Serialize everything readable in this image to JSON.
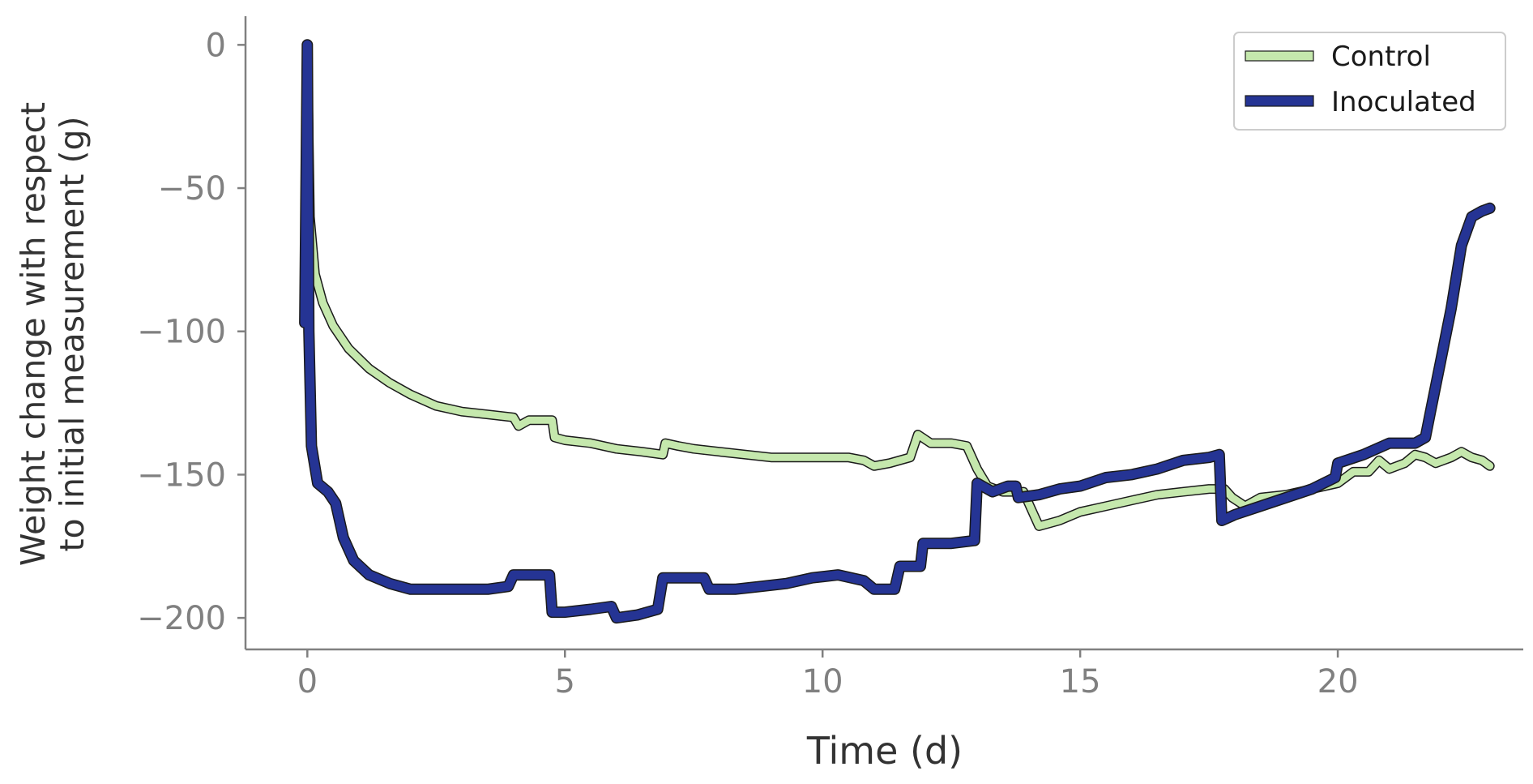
{
  "chart_data": {
    "type": "line",
    "xlabel": "Time (d)",
    "ylabel_line1": "Weight change with respect",
    "ylabel_line2": "to initial measurement (g)",
    "xlim": [
      -1.2,
      23.6
    ],
    "ylim": [
      -211,
      10
    ],
    "x_ticks": [
      0,
      5,
      10,
      15,
      20
    ],
    "y_ticks": [
      0,
      -50,
      -100,
      -150,
      -200
    ],
    "x_tick_labels": [
      "0",
      "5",
      "10",
      "15",
      "20"
    ],
    "y_tick_labels": [
      "0",
      "−50",
      "−100",
      "−150",
      "−200"
    ],
    "grid": false,
    "legend_position": "top-right",
    "series": [
      {
        "name": "Control",
        "color": "#c5e8ad",
        "edge": "#1a1a1a",
        "linewidth": 9,
        "points": [
          [
            0,
            0
          ],
          [
            0.05,
            -60
          ],
          [
            0.15,
            -80
          ],
          [
            0.3,
            -90
          ],
          [
            0.5,
            -98
          ],
          [
            0.8,
            -106
          ],
          [
            1.2,
            -113
          ],
          [
            1.6,
            -118
          ],
          [
            2.0,
            -122
          ],
          [
            2.5,
            -126
          ],
          [
            3.0,
            -128
          ],
          [
            3.5,
            -129
          ],
          [
            4.0,
            -130
          ],
          [
            4.1,
            -133
          ],
          [
            4.3,
            -131
          ],
          [
            4.75,
            -131
          ],
          [
            4.8,
            -137
          ],
          [
            5.0,
            -138
          ],
          [
            5.5,
            -139
          ],
          [
            6.0,
            -141
          ],
          [
            6.5,
            -142
          ],
          [
            6.9,
            -143
          ],
          [
            6.95,
            -139
          ],
          [
            7.2,
            -140
          ],
          [
            7.5,
            -141
          ],
          [
            8.0,
            -142
          ],
          [
            8.5,
            -143
          ],
          [
            9.0,
            -144
          ],
          [
            9.5,
            -144
          ],
          [
            10.0,
            -144
          ],
          [
            10.5,
            -144
          ],
          [
            10.8,
            -145
          ],
          [
            11.0,
            -147
          ],
          [
            11.3,
            -146
          ],
          [
            11.7,
            -144
          ],
          [
            11.85,
            -136
          ],
          [
            12.1,
            -139
          ],
          [
            12.5,
            -139
          ],
          [
            12.8,
            -140
          ],
          [
            13.0,
            -148
          ],
          [
            13.2,
            -154
          ],
          [
            13.5,
            -156
          ],
          [
            13.9,
            -156
          ],
          [
            14.05,
            -162
          ],
          [
            14.2,
            -168
          ],
          [
            14.6,
            -166
          ],
          [
            15.0,
            -163
          ],
          [
            15.5,
            -161
          ],
          [
            16.0,
            -159
          ],
          [
            16.5,
            -157
          ],
          [
            17.0,
            -156
          ],
          [
            17.5,
            -155
          ],
          [
            17.8,
            -155
          ],
          [
            17.95,
            -158
          ],
          [
            18.2,
            -161
          ],
          [
            18.5,
            -158
          ],
          [
            19.0,
            -157
          ],
          [
            19.5,
            -155
          ],
          [
            20.0,
            -153
          ],
          [
            20.3,
            -149
          ],
          [
            20.6,
            -149
          ],
          [
            20.8,
            -145
          ],
          [
            21.0,
            -148
          ],
          [
            21.3,
            -146
          ],
          [
            21.5,
            -143
          ],
          [
            21.7,
            -144
          ],
          [
            21.9,
            -146
          ],
          [
            22.2,
            -144
          ],
          [
            22.4,
            -142
          ],
          [
            22.6,
            -144
          ],
          [
            22.8,
            -145
          ],
          [
            22.95,
            -147
          ]
        ]
      },
      {
        "name": "Inoculated",
        "color": "#253494",
        "edge": "#1a1a1a",
        "linewidth": 11,
        "points": [
          [
            -0.05,
            -97
          ],
          [
            0,
            0
          ],
          [
            0.03,
            -100
          ],
          [
            0.08,
            -140
          ],
          [
            0.2,
            -153
          ],
          [
            0.4,
            -156
          ],
          [
            0.55,
            -160
          ],
          [
            0.7,
            -172
          ],
          [
            0.9,
            -180
          ],
          [
            1.2,
            -185
          ],
          [
            1.6,
            -188
          ],
          [
            2.0,
            -190
          ],
          [
            2.5,
            -190
          ],
          [
            3.0,
            -190
          ],
          [
            3.5,
            -190
          ],
          [
            3.9,
            -189
          ],
          [
            4.0,
            -185
          ],
          [
            4.3,
            -185
          ],
          [
            4.7,
            -185
          ],
          [
            4.75,
            -198
          ],
          [
            5.0,
            -198
          ],
          [
            5.5,
            -197
          ],
          [
            5.9,
            -196
          ],
          [
            6.0,
            -200
          ],
          [
            6.4,
            -199
          ],
          [
            6.8,
            -197
          ],
          [
            6.9,
            -186
          ],
          [
            7.3,
            -186
          ],
          [
            7.7,
            -186
          ],
          [
            7.8,
            -190
          ],
          [
            8.3,
            -190
          ],
          [
            8.8,
            -189
          ],
          [
            9.3,
            -188
          ],
          [
            9.8,
            -186
          ],
          [
            10.3,
            -185
          ],
          [
            10.8,
            -187
          ],
          [
            11.0,
            -190
          ],
          [
            11.4,
            -190
          ],
          [
            11.5,
            -182
          ],
          [
            11.9,
            -182
          ],
          [
            11.95,
            -174
          ],
          [
            12.5,
            -174
          ],
          [
            12.95,
            -173
          ],
          [
            13.0,
            -153
          ],
          [
            13.3,
            -156
          ],
          [
            13.6,
            -154
          ],
          [
            13.75,
            -154
          ],
          [
            13.8,
            -158
          ],
          [
            14.2,
            -157
          ],
          [
            14.6,
            -155
          ],
          [
            15.0,
            -154
          ],
          [
            15.5,
            -151
          ],
          [
            16.0,
            -150
          ],
          [
            16.5,
            -148
          ],
          [
            17.0,
            -145
          ],
          [
            17.5,
            -144
          ],
          [
            17.7,
            -143
          ],
          [
            17.75,
            -166
          ],
          [
            18.0,
            -164
          ],
          [
            18.5,
            -161
          ],
          [
            19.0,
            -158
          ],
          [
            19.5,
            -155
          ],
          [
            19.95,
            -151
          ],
          [
            20.0,
            -146
          ],
          [
            20.5,
            -143
          ],
          [
            21.0,
            -139
          ],
          [
            21.5,
            -139
          ],
          [
            21.7,
            -137
          ],
          [
            21.8,
            -128
          ],
          [
            22.0,
            -110
          ],
          [
            22.2,
            -92
          ],
          [
            22.4,
            -70
          ],
          [
            22.6,
            -60
          ],
          [
            22.8,
            -58
          ],
          [
            22.95,
            -57
          ]
        ]
      }
    ]
  }
}
